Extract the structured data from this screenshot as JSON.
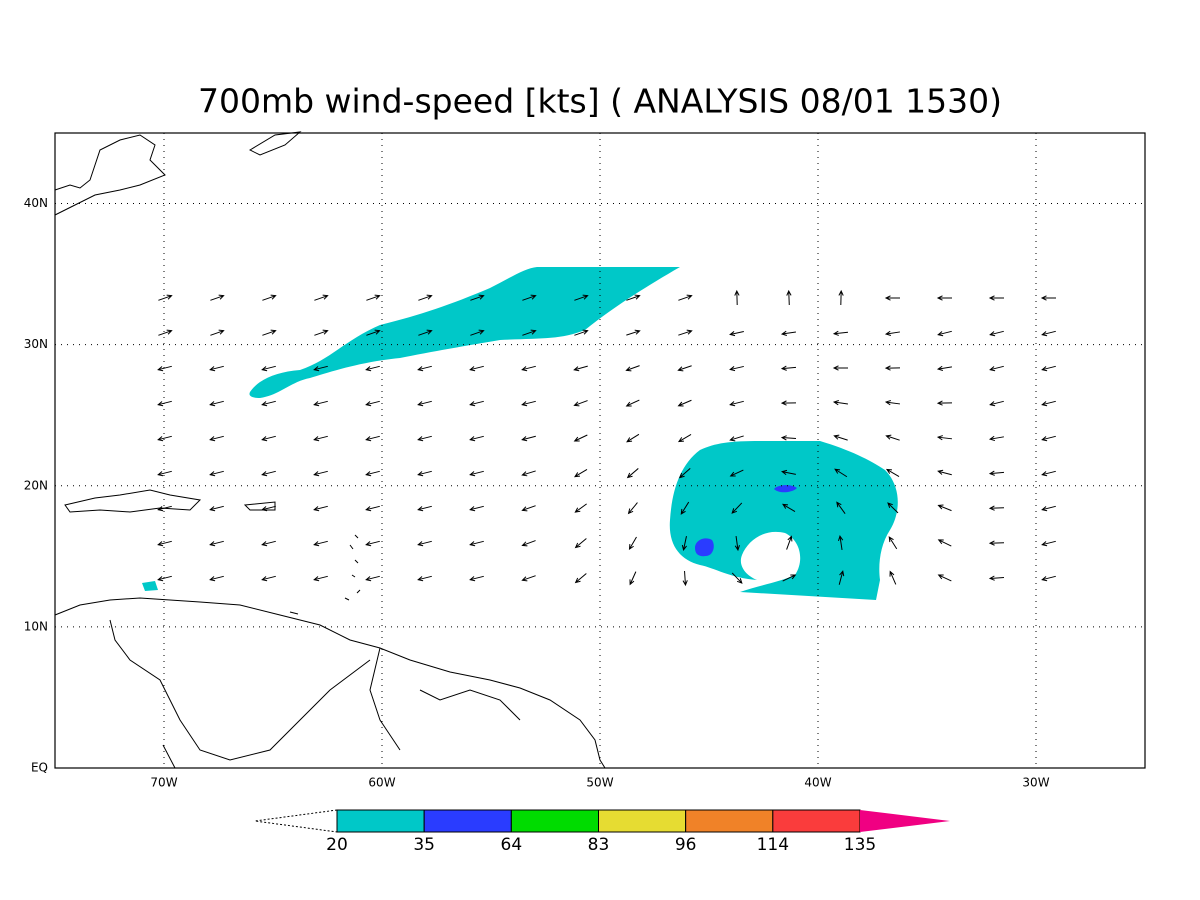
{
  "title": "700mb wind-speed [kts] ( ANALYSIS 08/01 1530)",
  "map": {
    "xlim": [
      -75,
      -25
    ],
    "ylim": [
      0,
      45
    ],
    "xticks": [
      {
        "value": -70,
        "label": "70W"
      },
      {
        "value": -60,
        "label": "60W"
      },
      {
        "value": -50,
        "label": "50W"
      },
      {
        "value": -40,
        "label": "40W"
      },
      {
        "value": -30,
        "label": "30W"
      }
    ],
    "yticks": [
      {
        "value": 0,
        "label": "EQ"
      },
      {
        "value": 10,
        "label": "10N"
      },
      {
        "value": 20,
        "label": "20N"
      },
      {
        "value": 30,
        "label": "30N"
      },
      {
        "value": 40,
        "label": "40N"
      }
    ],
    "grid": true
  },
  "colorbar": {
    "levels": [
      20,
      35,
      64,
      83,
      96,
      114,
      135
    ],
    "colors": [
      "#00c8c8",
      "#2a3cff",
      "#00dc00",
      "#e6dc32",
      "#f08228",
      "#fa3c3c",
      "#f00082"
    ]
  }
}
